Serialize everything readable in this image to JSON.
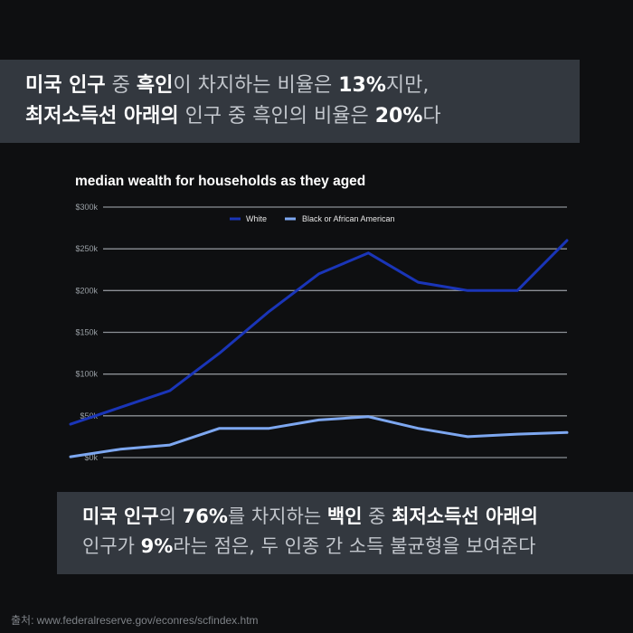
{
  "caption_top": {
    "line1": [
      {
        "text": "미국 인구",
        "style": "w"
      },
      {
        "text": " 중 ",
        "style": "g"
      },
      {
        "text": "흑인",
        "style": "w"
      },
      {
        "text": "이 차지하는 비율은 ",
        "style": "g"
      },
      {
        "text": "13%",
        "style": "w"
      },
      {
        "text": "지만,",
        "style": "g"
      }
    ],
    "line2": [
      {
        "text": "최저소득선 아래의",
        "style": "w"
      },
      {
        "text": " 인구 중 흑인의 비율은 ",
        "style": "g"
      },
      {
        "text": "20%",
        "style": "w"
      },
      {
        "text": "다",
        "style": "g"
      }
    ]
  },
  "caption_bottom": {
    "line1": [
      {
        "text": "미국 인구",
        "style": "w"
      },
      {
        "text": "의 ",
        "style": "g"
      },
      {
        "text": "76%",
        "style": "w"
      },
      {
        "text": "를 차지하는 ",
        "style": "g"
      },
      {
        "text": "백인",
        "style": "w"
      },
      {
        "text": " 중 ",
        "style": "g"
      },
      {
        "text": "최저소득선 아래의",
        "style": "w"
      }
    ],
    "line2": [
      {
        "text": "인구가 ",
        "style": "g"
      },
      {
        "text": "9%",
        "style": "w"
      },
      {
        "text": "라는 점은, 두 인종 간 소득 불균형을 보여준다",
        "style": "g"
      }
    ]
  },
  "source": "출처: www.federalreserve.gov/econres/scfindex.htm",
  "chart_data": {
    "type": "line",
    "title": "median wealth for households as they aged",
    "xlabel": "",
    "ylabel": "",
    "ylim": [
      0,
      300000
    ],
    "yticks": [
      0,
      50000,
      100000,
      150000,
      200000,
      250000,
      300000
    ],
    "ytick_labels": [
      "$0k",
      "$50k",
      "$100k",
      "$150k",
      "$200k",
      "$250k",
      "$300k"
    ],
    "grid": true,
    "legend_position": "top-center",
    "x": [
      1,
      2,
      3,
      4,
      5,
      6,
      7,
      8,
      9,
      10,
      11
    ],
    "series": [
      {
        "name": "White",
        "color": "#1a35b8",
        "values": [
          40000,
          60000,
          80000,
          125000,
          175000,
          220000,
          245000,
          210000,
          200000,
          200000,
          260000
        ]
      },
      {
        "name": "Black or African American",
        "color": "#7da7f0",
        "values": [
          1000,
          10000,
          15000,
          35000,
          35000,
          45000,
          49000,
          35000,
          25000,
          28000,
          30000
        ]
      }
    ]
  }
}
